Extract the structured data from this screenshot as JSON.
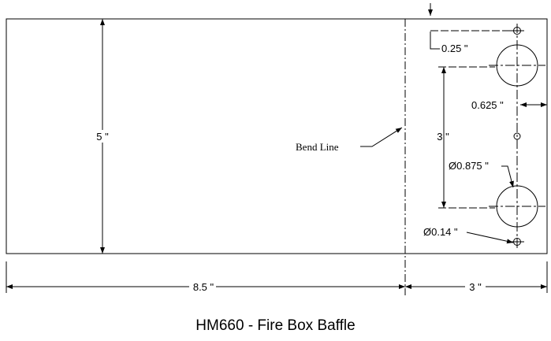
{
  "title": "HM660 - Fire Box Baffle",
  "dimensions": {
    "height": "5 \"",
    "flat_width": "8.5 \"",
    "flange_width": "3 \"",
    "hole_spacing": "3 \"",
    "top_offset": "0.25 \"",
    "edge_offset": "0.625 \"",
    "large_hole_dia": "Ø0.875 \"",
    "small_hole_dia": "Ø0.14 \""
  },
  "annotations": {
    "bend_line": "Bend Line"
  },
  "colors": {
    "line": "#000000",
    "background": "#ffffff"
  }
}
